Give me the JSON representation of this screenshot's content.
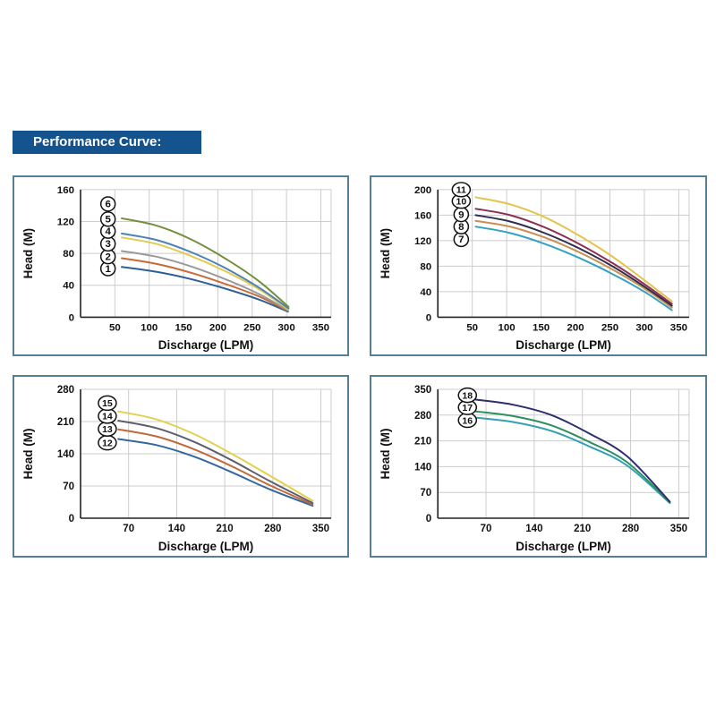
{
  "page": {
    "title": "Performance Curve:",
    "colors": {
      "title_bg": "#15538f",
      "title_text": "#ffffff",
      "panel_border": "#567f95",
      "grid": "#cccccc",
      "axis": "#222222",
      "background": "#ffffff"
    }
  },
  "chart_data": [
    {
      "type": "line",
      "title": "",
      "xlabel": "Discharge (LPM)",
      "ylabel": "Head (M)",
      "xlim": [
        0,
        365
      ],
      "ylim": [
        0,
        160
      ],
      "x_ticks": [
        50,
        100,
        150,
        200,
        250,
        300,
        350
      ],
      "y_ticks": [
        0,
        40,
        80,
        120,
        160
      ],
      "grid": true,
      "legend": "circled numbers at curve start",
      "series": [
        {
          "name": "1",
          "color": "#2e5f96",
          "label_pos": [
            40,
            61
          ],
          "points": [
            [
              60,
              63
            ],
            [
              110,
              57
            ],
            [
              160,
              48
            ],
            [
              210,
              36
            ],
            [
              260,
              22
            ],
            [
              302,
              7
            ]
          ]
        },
        {
          "name": "2",
          "color": "#c96a35",
          "label_pos": [
            40,
            76
          ],
          "points": [
            [
              60,
              74
            ],
            [
              110,
              67
            ],
            [
              160,
              56
            ],
            [
              210,
              42
            ],
            [
              260,
              26
            ],
            [
              302,
              8
            ]
          ]
        },
        {
          "name": "3",
          "color": "#9a9a9a",
          "label_pos": [
            40,
            92
          ],
          "points": [
            [
              60,
              83
            ],
            [
              110,
              76
            ],
            [
              160,
              64
            ],
            [
              210,
              48
            ],
            [
              260,
              29
            ],
            [
              302,
              9
            ]
          ]
        },
        {
          "name": "4",
          "color": "#e3cb4e",
          "label_pos": [
            40,
            108
          ],
          "points": [
            [
              60,
              100
            ],
            [
              110,
              92
            ],
            [
              160,
              77
            ],
            [
              210,
              58
            ],
            [
              260,
              35
            ],
            [
              302,
              10
            ]
          ]
        },
        {
          "name": "5",
          "color": "#4d82b8",
          "label_pos": [
            40,
            123
          ],
          "points": [
            [
              60,
              105
            ],
            [
              110,
              97
            ],
            [
              160,
              82
            ],
            [
              210,
              62
            ],
            [
              260,
              37
            ],
            [
              303,
              11
            ]
          ]
        },
        {
          "name": "6",
          "color": "#748f3d",
          "label_pos": [
            40,
            142
          ],
          "points": [
            [
              60,
              124
            ],
            [
              110,
              115
            ],
            [
              160,
              98
            ],
            [
              210,
              74
            ],
            [
              260,
              45
            ],
            [
              303,
              13
            ]
          ]
        }
      ]
    },
    {
      "type": "line",
      "title": "",
      "xlabel": "Discharge (LPM)",
      "ylabel": "Head (M)",
      "xlim": [
        0,
        365
      ],
      "ylim": [
        0,
        200
      ],
      "x_ticks": [
        50,
        100,
        150,
        200,
        250,
        300,
        350
      ],
      "y_ticks": [
        0,
        40,
        80,
        120,
        160,
        200
      ],
      "grid": true,
      "legend": "circled numbers at curve start",
      "series": [
        {
          "name": "7",
          "color": "#35a1c2",
          "label_pos": [
            34,
            122
          ],
          "points": [
            [
              55,
              142
            ],
            [
              105,
              132
            ],
            [
              155,
              115
            ],
            [
              205,
              93
            ],
            [
              255,
              67
            ],
            [
              300,
              40
            ],
            [
              340,
              11
            ]
          ]
        },
        {
          "name": "8",
          "color": "#c98f4e",
          "label_pos": [
            34,
            142
          ],
          "points": [
            [
              55,
              151
            ],
            [
              105,
              142
            ],
            [
              155,
              125
            ],
            [
              205,
              102
            ],
            [
              255,
              74
            ],
            [
              300,
              45
            ],
            [
              340,
              15
            ]
          ]
        },
        {
          "name": "9",
          "color": "#2e2e50",
          "label_pos": [
            34,
            161
          ],
          "points": [
            [
              55,
              160
            ],
            [
              105,
              150
            ],
            [
              155,
              132
            ],
            [
              205,
              108
            ],
            [
              255,
              79
            ],
            [
              300,
              48
            ],
            [
              340,
              18
            ]
          ]
        },
        {
          "name": "10",
          "color": "#8e3054",
          "label_pos": [
            34,
            182
          ],
          "points": [
            [
              55,
              170
            ],
            [
              105,
              160
            ],
            [
              155,
              141
            ],
            [
              205,
              115
            ],
            [
              255,
              84
            ],
            [
              300,
              52
            ],
            [
              340,
              21
            ]
          ]
        },
        {
          "name": "11",
          "color": "#e3c44e",
          "label_pos": [
            34,
            200
          ],
          "points": [
            [
              55,
              188
            ],
            [
              105,
              177
            ],
            [
              155,
              157
            ],
            [
              205,
              128
            ],
            [
              255,
              94
            ],
            [
              300,
              58
            ],
            [
              340,
              25
            ]
          ]
        }
      ]
    },
    {
      "type": "line",
      "title": "",
      "xlabel": "Discharge (LPM)",
      "ylabel": "Head (M)",
      "xlim": [
        0,
        365
      ],
      "ylim": [
        0,
        280
      ],
      "x_ticks": [
        70,
        140,
        210,
        280,
        350
      ],
      "y_ticks": [
        0,
        70,
        140,
        210,
        280
      ],
      "grid": true,
      "legend": "circled numbers at curve start",
      "series": [
        {
          "name": "12",
          "color": "#34679f",
          "label_pos": [
            39,
            164
          ],
          "points": [
            [
              55,
              172
            ],
            [
              110,
              159
            ],
            [
              165,
              134
            ],
            [
              220,
              100
            ],
            [
              275,
              63
            ],
            [
              338,
              27
            ]
          ]
        },
        {
          "name": "13",
          "color": "#bf6a3a",
          "label_pos": [
            39,
            194
          ],
          "points": [
            [
              55,
              193
            ],
            [
              110,
              178
            ],
            [
              165,
              150
            ],
            [
              220,
              113
            ],
            [
              275,
              72
            ],
            [
              338,
              30
            ]
          ]
        },
        {
          "name": "14",
          "color": "#5d5d70",
          "label_pos": [
            39,
            222
          ],
          "points": [
            [
              55,
              212
            ],
            [
              110,
              196
            ],
            [
              165,
              166
            ],
            [
              220,
              126
            ],
            [
              275,
              81
            ],
            [
              338,
              33
            ]
          ]
        },
        {
          "name": "15",
          "color": "#e3d04e",
          "label_pos": [
            39,
            250
          ],
          "points": [
            [
              55,
              232
            ],
            [
              110,
              215
            ],
            [
              165,
              183
            ],
            [
              220,
              140
            ],
            [
              275,
              93
            ],
            [
              338,
              38
            ]
          ]
        }
      ]
    },
    {
      "type": "line",
      "title": "",
      "xlabel": "Discharge (LPM)",
      "ylabel": "Head (M)",
      "xlim": [
        0,
        365
      ],
      "ylim": [
        0,
        350
      ],
      "x_ticks": [
        70,
        140,
        210,
        280,
        350
      ],
      "y_ticks": [
        0,
        70,
        140,
        210,
        280,
        350
      ],
      "grid": true,
      "legend": "circled numbers at curve start",
      "series": [
        {
          "name": "16",
          "color": "#35a0b5",
          "label_pos": [
            43,
            266
          ],
          "points": [
            [
              55,
              273
            ],
            [
              110,
              261
            ],
            [
              165,
              237
            ],
            [
              220,
              195
            ],
            [
              275,
              143
            ],
            [
              337,
              41
            ]
          ]
        },
        {
          "name": "17",
          "color": "#2e8f5e",
          "label_pos": [
            43,
            301
          ],
          "points": [
            [
              55,
              290
            ],
            [
              110,
              277
            ],
            [
              165,
              252
            ],
            [
              220,
              207
            ],
            [
              275,
              152
            ],
            [
              337,
              43
            ]
          ]
        },
        {
          "name": "18",
          "color": "#2e2e70",
          "label_pos": [
            43,
            334
          ],
          "points": [
            [
              55,
              322
            ],
            [
              110,
              308
            ],
            [
              165,
              280
            ],
            [
              220,
              230
            ],
            [
              275,
              168
            ],
            [
              337,
              45
            ]
          ]
        }
      ]
    }
  ]
}
